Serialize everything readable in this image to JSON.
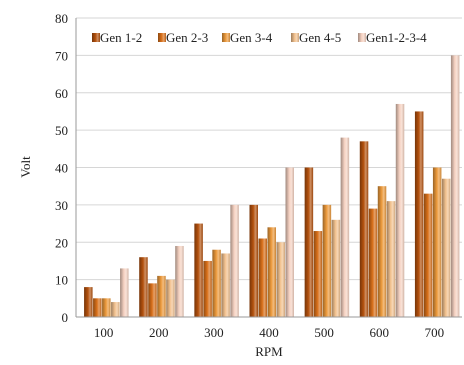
{
  "chart_data": {
    "type": "bar",
    "title": "",
    "xlabel": "RPM",
    "ylabel": "Volt",
    "ylim": [
      0,
      80
    ],
    "yticks": [
      0,
      10,
      20,
      30,
      40,
      50,
      60,
      70,
      80
    ],
    "categories": [
      "100",
      "200",
      "300",
      "400",
      "500",
      "600",
      "700"
    ],
    "grid": "horizontal",
    "legend_position": "top",
    "series": [
      {
        "name": "Gen 1-2",
        "color": "#b5520e",
        "values": [
          8,
          16,
          25,
          30,
          40,
          47,
          55
        ]
      },
      {
        "name": "Gen 2-3",
        "color": "#d9701a",
        "values": [
          5,
          9,
          15,
          21,
          23,
          29,
          33
        ]
      },
      {
        "name": "Gen 3-4",
        "color": "#ec9a3c",
        "values": [
          5,
          11,
          18,
          24,
          30,
          35,
          40
        ]
      },
      {
        "name": "Gen 4-5",
        "color": "#f3c28f",
        "values": [
          4,
          10,
          17,
          20,
          26,
          31,
          37
        ]
      },
      {
        "name": "Gen1-2-3-4",
        "color": "#f6d2c2",
        "values": [
          13,
          19,
          30,
          40,
          48,
          57,
          70
        ]
      }
    ]
  }
}
